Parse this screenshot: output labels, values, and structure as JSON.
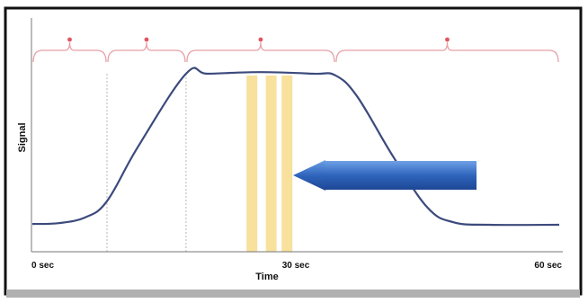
{
  "chart_data": {
    "type": "line",
    "xlabel": "Time",
    "ylabel": "Signal",
    "xlim": [
      0,
      60
    ],
    "ylim": [
      0,
      1
    ],
    "x_ticks": [
      {
        "x": 0,
        "label": "0 sec"
      },
      {
        "x": 30,
        "label": "30 sec"
      },
      {
        "x": 60,
        "label": "60 sec"
      }
    ],
    "grid": false,
    "legend": "none",
    "series": [
      {
        "x": [
          0,
          3,
          6,
          8.5,
          12,
          17.5,
          20,
          26,
          32,
          34.5,
          37,
          41,
          45,
          48,
          52,
          60
        ],
        "values": [
          0.08,
          0.085,
          0.12,
          0.22,
          0.55,
          1.0,
          1.0,
          1.01,
          1.0,
          0.99,
          0.86,
          0.5,
          0.18,
          0.09,
          0.075,
          0.075
        ]
      }
    ],
    "phase_dividers": [
      8.5,
      17.5
    ],
    "phase_braces": [
      {
        "start": 0,
        "end": 8.5
      },
      {
        "start": 8.5,
        "end": 17.5
      },
      {
        "start": 17.5,
        "end": 34.5
      },
      {
        "start": 34.5,
        "end": 60
      }
    ],
    "highlight_bands": [
      25,
      27.2,
      29
    ]
  },
  "colors": {
    "curve": "#3c4a7c",
    "brace": "#e8a0a8",
    "divider": "#b8b8b8",
    "band": "#f6dc8c",
    "arrow": "#2e62b4",
    "axis": "#666666",
    "frame": "#111111",
    "shadow": "#a8a8a8"
  },
  "annotation_arrow": {
    "direction": "left",
    "icon": "left-arrow-icon"
  }
}
